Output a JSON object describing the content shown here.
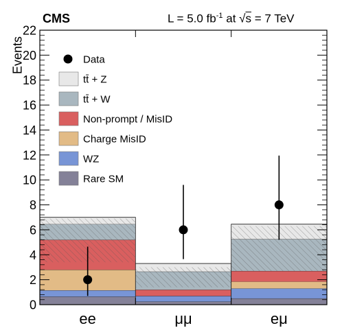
{
  "header": {
    "experiment": "CMS",
    "lumi_prefix": "L = 5.0 fb",
    "lumi_exp": "-1",
    "lumi_mid": " at ",
    "sqrt_char": "√",
    "sqrt_s": "s",
    "lumi_suffix": " = 7 TeV"
  },
  "colors": {
    "ttZ": "#e8e8e8",
    "ttW": "#a9b7bf",
    "nonprompt": "#d95f5f",
    "charge": "#e2bb86",
    "wz": "#7895d6",
    "raresm": "#848198",
    "data": "#000000"
  },
  "chart_data": {
    "type": "bar",
    "stacked": true,
    "categories": [
      "ee",
      "μμ",
      "eμ"
    ],
    "ylabel": "Events",
    "xlabel": "",
    "ylim": [
      0,
      22
    ],
    "yticks": [
      0,
      2,
      4,
      6,
      8,
      10,
      12,
      14,
      16,
      18,
      20,
      22
    ],
    "legend_position": "top-left",
    "series": [
      {
        "name": "Rare SM",
        "color_key": "raresm",
        "values": [
          0.65,
          0.25,
          0.5
        ]
      },
      {
        "name": "WZ",
        "color_key": "wz",
        "values": [
          0.5,
          0.45,
          0.8
        ]
      },
      {
        "name": "Charge MisID",
        "color_key": "charge",
        "values": [
          1.65,
          0.0,
          0.55
        ]
      },
      {
        "name": "Non-prompt / MisID",
        "color_key": "nonprompt",
        "values": [
          2.4,
          0.5,
          0.85
        ]
      },
      {
        "name": "tt̄ + W",
        "color_key": "ttW",
        "values": [
          1.25,
          1.45,
          2.55
        ]
      },
      {
        "name": "tt̄ + Z",
        "color_key": "ttZ",
        "values": [
          0.55,
          0.65,
          1.2
        ]
      }
    ],
    "uncertainty_band": [
      {
        "low": 3.4,
        "high": 6.9
      },
      {
        "low": 1.4,
        "high": 3.0
      },
      {
        "low": 2.7,
        "high": 6.3
      }
    ],
    "data": {
      "name": "Data",
      "values": [
        2,
        6,
        8
      ],
      "err_low": [
        1.3,
        2.35,
        2.8
      ],
      "err_high": [
        2.65,
        3.6,
        3.95
      ]
    },
    "legend_order": [
      "Data",
      "tt̄ + Z",
      "tt̄ + W",
      "Non-prompt / MisID",
      "Charge MisID",
      "WZ",
      "Rare SM"
    ]
  }
}
